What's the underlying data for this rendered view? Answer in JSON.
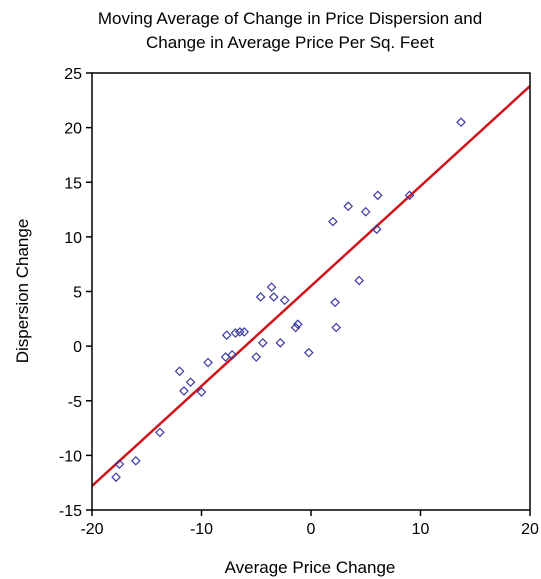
{
  "chart_data": {
    "type": "scatter",
    "title": [
      "Moving Average of Change in Price Dispersion and",
      "Change in Average Price Per Sq. Feet"
    ],
    "xlabel": "Average Price Change",
    "ylabel": "Dispersion Change",
    "xlim": [
      -20,
      20
    ],
    "ylim": [
      -15,
      25
    ],
    "xticks": [
      -20,
      -10,
      0,
      10,
      20
    ],
    "yticks": [
      -15,
      -10,
      -5,
      0,
      5,
      10,
      15,
      20,
      25
    ],
    "grid": false,
    "legend": "none",
    "marker": "diamond-open",
    "marker_color": "#3a3aa6",
    "fit_line_color": "#d0131b",
    "points": [
      {
        "x": -17.8,
        "y": -12.0
      },
      {
        "x": -17.5,
        "y": -10.8
      },
      {
        "x": -16.0,
        "y": -10.5
      },
      {
        "x": -13.8,
        "y": -7.9
      },
      {
        "x": -12.0,
        "y": -2.3
      },
      {
        "x": -11.6,
        "y": -4.1
      },
      {
        "x": -11.0,
        "y": -3.3
      },
      {
        "x": -10.0,
        "y": -4.2
      },
      {
        "x": -9.4,
        "y": -1.5
      },
      {
        "x": -7.8,
        "y": -1.0
      },
      {
        "x": -7.7,
        "y": 1.0
      },
      {
        "x": -7.2,
        "y": -0.8
      },
      {
        "x": -6.9,
        "y": 1.2
      },
      {
        "x": -6.5,
        "y": 1.3
      },
      {
        "x": -6.1,
        "y": 1.3
      },
      {
        "x": -5.0,
        "y": -1.0
      },
      {
        "x": -4.6,
        "y": 4.5
      },
      {
        "x": -4.4,
        "y": 0.3
      },
      {
        "x": -3.6,
        "y": 5.4
      },
      {
        "x": -3.4,
        "y": 4.5
      },
      {
        "x": -2.8,
        "y": 0.3
      },
      {
        "x": -2.4,
        "y": 4.2
      },
      {
        "x": -1.4,
        "y": 1.7
      },
      {
        "x": -1.2,
        "y": 2.0
      },
      {
        "x": -0.2,
        "y": -0.6
      },
      {
        "x": 2.0,
        "y": 11.4
      },
      {
        "x": 2.2,
        "y": 4.0
      },
      {
        "x": 2.3,
        "y": 1.7
      },
      {
        "x": 3.4,
        "y": 12.8
      },
      {
        "x": 4.4,
        "y": 6.0
      },
      {
        "x": 5.0,
        "y": 12.3
      },
      {
        "x": 6.0,
        "y": 10.7
      },
      {
        "x": 6.1,
        "y": 13.8
      },
      {
        "x": 9.0,
        "y": 13.8
      },
      {
        "x": 13.7,
        "y": 20.5
      }
    ],
    "fit_line": {
      "x": [
        -20,
        20
      ],
      "y": [
        -12.8,
        23.8
      ]
    }
  }
}
